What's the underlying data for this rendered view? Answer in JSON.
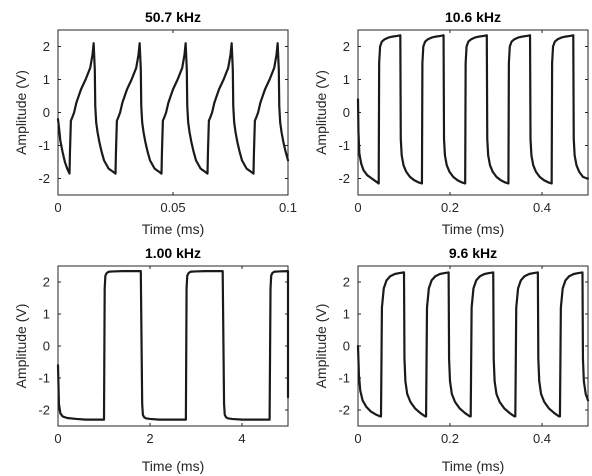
{
  "colors": {
    "trace": "#1a1a1a",
    "axis": "#262626"
  },
  "chart_data": [
    {
      "type": "line",
      "title": "50.7 kHz",
      "xlabel": "Time (ms)",
      "ylabel": "Amplitude (V)",
      "xlim": [
        0,
        0.1
      ],
      "ylim": [
        -2.5,
        2.5
      ],
      "xticks": [
        0,
        0.05,
        0.1
      ],
      "xtick_labels": [
        "0",
        "0.05",
        "0.1"
      ],
      "yticks": [
        -2,
        -1,
        0,
        1,
        2
      ],
      "ytick_labels": [
        "-2",
        "-1",
        "0",
        "1",
        "2"
      ],
      "grid": false,
      "series": [
        {
          "x": [
            0.0,
            0.0005,
            0.001,
            0.002,
            0.003,
            0.004,
            0.005,
            0.0052,
            0.0056,
            0.0062,
            0.007,
            0.008,
            0.01,
            0.012,
            0.014,
            0.015,
            0.0155,
            0.016,
            0.0162,
            0.0166,
            0.0172,
            0.018,
            0.019,
            0.02,
            0.022,
            0.024,
            0.025,
            0.0252,
            0.0256,
            0.0262,
            0.027,
            0.028,
            0.03,
            0.032,
            0.034,
            0.035,
            0.0355,
            0.036,
            0.0362,
            0.0366,
            0.0372,
            0.038,
            0.039,
            0.04,
            0.042,
            0.044,
            0.045,
            0.0452,
            0.0456,
            0.0462,
            0.047,
            0.048,
            0.05,
            0.052,
            0.054,
            0.055,
            0.0555,
            0.056,
            0.0562,
            0.0566,
            0.0572,
            0.058,
            0.059,
            0.06,
            0.062,
            0.064,
            0.065,
            0.0652,
            0.0656,
            0.0662,
            0.067,
            0.068,
            0.07,
            0.072,
            0.074,
            0.075,
            0.0755,
            0.076,
            0.0762,
            0.0766,
            0.0772,
            0.078,
            0.079,
            0.08,
            0.082,
            0.084,
            0.085,
            0.0852,
            0.0856,
            0.0862,
            0.087,
            0.088,
            0.09,
            0.092,
            0.094,
            0.095,
            0.0955,
            0.096,
            0.0962,
            0.0966,
            0.0972,
            0.098,
            0.099,
            0.1
          ],
          "y": [
            -0.2,
            -0.5,
            -0.85,
            -1.2,
            -1.5,
            -1.7,
            -1.85,
            -1.2,
            -0.25,
            -0.15,
            0.0,
            0.3,
            0.7,
            1.0,
            1.35,
            1.75,
            2.1,
            1.3,
            0.2,
            -0.3,
            -0.6,
            -0.9,
            -1.2,
            -1.45,
            -1.7,
            -1.8,
            -1.85,
            -1.2,
            -0.25,
            -0.15,
            0.0,
            0.3,
            0.7,
            1.0,
            1.35,
            1.75,
            2.1,
            1.3,
            0.2,
            -0.3,
            -0.6,
            -0.9,
            -1.2,
            -1.45,
            -1.7,
            -1.8,
            -1.85,
            -1.2,
            -0.25,
            -0.15,
            0.0,
            0.3,
            0.7,
            1.0,
            1.35,
            1.75,
            2.1,
            1.3,
            0.2,
            -0.3,
            -0.6,
            -0.9,
            -1.2,
            -1.45,
            -1.7,
            -1.8,
            -1.85,
            -1.2,
            -0.25,
            -0.15,
            0.0,
            0.3,
            0.7,
            1.0,
            1.35,
            1.75,
            2.1,
            1.3,
            0.2,
            -0.3,
            -0.6,
            -0.9,
            -1.2,
            -1.45,
            -1.7,
            -1.8,
            -1.85,
            -1.2,
            -0.25,
            -0.15,
            0.0,
            0.3,
            0.7,
            1.0,
            1.35,
            1.75,
            2.1,
            1.3,
            0.2,
            -0.3,
            -0.6,
            -0.9,
            -1.2,
            -1.45
          ]
        }
      ]
    },
    {
      "type": "line",
      "title": "10.6 kHz",
      "xlabel": "Time (ms)",
      "ylabel": "Amplitude (V)",
      "xlim": [
        0,
        0.5
      ],
      "ylim": [
        -2.5,
        2.5
      ],
      "xticks": [
        0,
        0.2,
        0.4
      ],
      "xtick_labels": [
        "0",
        "0.2",
        "0.4"
      ],
      "yticks": [
        -2,
        -1,
        0,
        1,
        2
      ],
      "ytick_labels": [
        "-2",
        "-1",
        "0",
        "1",
        "2"
      ],
      "grid": false,
      "series": [
        {
          "x": [
            0.0,
            0.001,
            0.003,
            0.007,
            0.012,
            0.02,
            0.03,
            0.04,
            0.045,
            0.046,
            0.048,
            0.052,
            0.058,
            0.066,
            0.075,
            0.085,
            0.092,
            0.093,
            0.095,
            0.099,
            0.105,
            0.113,
            0.122,
            0.132,
            0.139,
            0.14,
            0.142,
            0.146,
            0.152,
            0.16,
            0.169,
            0.179,
            0.186,
            0.187,
            0.189,
            0.193,
            0.199,
            0.207,
            0.216,
            0.226,
            0.233,
            0.234,
            0.236,
            0.24,
            0.246,
            0.254,
            0.263,
            0.273,
            0.28,
            0.281,
            0.283,
            0.287,
            0.293,
            0.301,
            0.31,
            0.32,
            0.327,
            0.328,
            0.33,
            0.334,
            0.34,
            0.348,
            0.357,
            0.367,
            0.374,
            0.375,
            0.377,
            0.381,
            0.387,
            0.395,
            0.404,
            0.414,
            0.421,
            0.422,
            0.424,
            0.428,
            0.434,
            0.442,
            0.451,
            0.461,
            0.468,
            0.469,
            0.471,
            0.475,
            0.481,
            0.489,
            0.498,
            0.5
          ],
          "y": [
            0.4,
            -0.6,
            -1.25,
            -1.55,
            -1.75,
            -1.9,
            -2.0,
            -2.1,
            -2.15,
            1.5,
            2.0,
            2.15,
            2.22,
            2.27,
            2.3,
            2.32,
            2.34,
            -0.8,
            -1.3,
            -1.6,
            -1.8,
            -1.95,
            -2.05,
            -2.12,
            -2.15,
            1.5,
            2.0,
            2.15,
            2.22,
            2.27,
            2.3,
            2.32,
            2.34,
            -0.8,
            -1.3,
            -1.6,
            -1.8,
            -1.95,
            -2.05,
            -2.12,
            -2.15,
            1.5,
            2.0,
            2.15,
            2.22,
            2.27,
            2.3,
            2.32,
            2.34,
            -0.8,
            -1.3,
            -1.6,
            -1.8,
            -1.95,
            -2.05,
            -2.12,
            -2.15,
            1.5,
            2.0,
            2.15,
            2.22,
            2.27,
            2.3,
            2.32,
            2.34,
            -0.8,
            -1.3,
            -1.6,
            -1.8,
            -1.95,
            -2.05,
            -2.12,
            -2.15,
            1.5,
            2.0,
            2.15,
            2.22,
            2.27,
            2.3,
            2.32,
            2.34,
            -0.8,
            -1.3,
            -1.6,
            -1.8,
            -1.95,
            -2.0,
            -2.0
          ]
        }
      ]
    },
    {
      "type": "line",
      "title": "1.00 kHz",
      "xlabel": "Time (ms)",
      "ylabel": "Amplitude (V)",
      "xlim": [
        0,
        5
      ],
      "ylim": [
        -2.5,
        2.5
      ],
      "xticks": [
        0,
        2,
        4
      ],
      "xtick_labels": [
        "0",
        "2",
        "4"
      ],
      "yticks": [
        -2,
        -1,
        0,
        1,
        2
      ],
      "ytick_labels": [
        "-2",
        "-1",
        "0",
        "1",
        "2"
      ],
      "grid": false,
      "series": [
        {
          "x": [
            0.0,
            0.02,
            0.05,
            0.1,
            0.2,
            0.4,
            0.6,
            0.8,
            1.0,
            1.015,
            1.03,
            1.06,
            1.1,
            1.2,
            1.4,
            1.6,
            1.8,
            1.83,
            1.845,
            1.87,
            1.91,
            2.0,
            2.2,
            2.4,
            2.6,
            2.78,
            2.795,
            2.81,
            2.84,
            2.88,
            2.98,
            3.2,
            3.4,
            3.58,
            3.61,
            3.625,
            3.65,
            3.69,
            3.78,
            4.0,
            4.2,
            4.4,
            4.6,
            4.62,
            4.635,
            4.66,
            4.7,
            4.8,
            5.0,
            5.02
          ],
          "y": [
            -0.6,
            -1.8,
            -2.1,
            -2.2,
            -2.25,
            -2.28,
            -2.3,
            -2.3,
            -2.3,
            1.8,
            2.2,
            2.28,
            2.32,
            2.33,
            2.34,
            2.34,
            2.34,
            -1.8,
            -2.15,
            -2.22,
            -2.26,
            -2.28,
            -2.3,
            -2.3,
            -2.3,
            -2.3,
            1.8,
            2.2,
            2.28,
            2.32,
            2.33,
            2.34,
            2.34,
            2.34,
            -1.8,
            -2.15,
            -2.22,
            -2.26,
            -2.28,
            -2.3,
            -2.3,
            -2.3,
            -2.3,
            1.8,
            2.2,
            2.28,
            2.32,
            2.33,
            2.34,
            -1.6
          ]
        }
      ]
    },
    {
      "type": "line",
      "title": "9.6 kHz",
      "xlabel": "Time (ms)",
      "ylabel": "Amplitude (V)",
      "xlim": [
        0,
        0.5
      ],
      "ylim": [
        -2.5,
        2.5
      ],
      "xticks": [
        0,
        0.2,
        0.4
      ],
      "xtick_labels": [
        "0",
        "0.2",
        "0.4"
      ],
      "yticks": [
        -2,
        -1,
        0,
        1,
        2
      ],
      "ytick_labels": [
        "-2",
        "-1",
        "0",
        "1",
        "2"
      ],
      "grid": false,
      "series": [
        {
          "x": [
            0.0,
            0.002,
            0.005,
            0.01,
            0.018,
            0.028,
            0.04,
            0.048,
            0.05,
            0.052,
            0.056,
            0.062,
            0.07,
            0.08,
            0.09,
            0.1,
            0.101,
            0.103,
            0.107,
            0.114,
            0.124,
            0.136,
            0.146,
            0.148,
            0.15,
            0.154,
            0.16,
            0.168,
            0.178,
            0.188,
            0.197,
            0.198,
            0.2,
            0.204,
            0.211,
            0.221,
            0.233,
            0.243,
            0.245,
            0.247,
            0.251,
            0.257,
            0.265,
            0.275,
            0.285,
            0.294,
            0.295,
            0.297,
            0.301,
            0.308,
            0.318,
            0.33,
            0.34,
            0.342,
            0.344,
            0.348,
            0.354,
            0.362,
            0.372,
            0.382,
            0.391,
            0.392,
            0.394,
            0.398,
            0.405,
            0.415,
            0.427,
            0.437,
            0.439,
            0.441,
            0.445,
            0.451,
            0.459,
            0.469,
            0.479,
            0.488,
            0.489,
            0.491,
            0.495,
            0.5
          ],
          "y": [
            0.0,
            -0.9,
            -1.4,
            -1.7,
            -1.9,
            -2.05,
            -2.15,
            -2.2,
            -2.2,
            1.2,
            1.8,
            2.05,
            2.18,
            2.25,
            2.28,
            2.3,
            -0.4,
            -1.1,
            -1.5,
            -1.75,
            -1.95,
            -2.1,
            -2.2,
            -2.2,
            1.2,
            1.8,
            2.05,
            2.18,
            2.25,
            2.28,
            2.3,
            -0.4,
            -1.1,
            -1.5,
            -1.75,
            -1.95,
            -2.1,
            -2.2,
            -2.2,
            1.2,
            1.8,
            2.05,
            2.18,
            2.25,
            2.28,
            2.3,
            -0.4,
            -1.1,
            -1.5,
            -1.75,
            -1.95,
            -2.1,
            -2.2,
            -2.2,
            1.2,
            1.8,
            2.05,
            2.18,
            2.25,
            2.28,
            2.3,
            -0.4,
            -1.1,
            -1.5,
            -1.75,
            -1.95,
            -2.1,
            -2.2,
            -2.2,
            1.2,
            1.8,
            2.05,
            2.18,
            2.25,
            2.28,
            2.3,
            -0.4,
            -1.1,
            -1.5,
            -1.7
          ]
        }
      ]
    }
  ]
}
